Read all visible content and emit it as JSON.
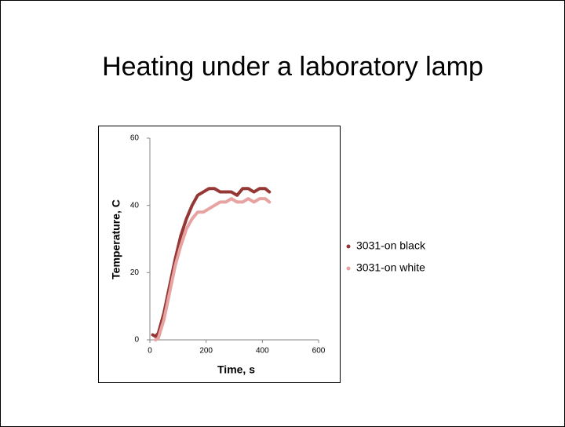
{
  "chart_data": {
    "type": "line",
    "title": "Heating under a laboratory lamp",
    "x_label": "Time,  s",
    "y_label": "Temperature, C",
    "x": [
      10,
      20,
      30,
      50,
      70,
      90,
      110,
      130,
      150,
      170,
      190,
      210,
      230,
      250,
      270,
      290,
      310,
      330,
      350,
      370,
      390,
      410,
      425
    ],
    "series": [
      {
        "name": "3031-on black",
        "color": "#953735",
        "values": [
          1.5,
          1,
          2,
          8,
          16,
          24,
          31,
          36,
          40,
          43,
          44,
          45,
          45,
          44,
          44,
          44,
          43,
          45,
          45,
          44,
          45,
          45,
          44
        ]
      },
      {
        "name": "3031-on white",
        "color": "#e6a3a1",
        "values": [
          null,
          0,
          0.5,
          6,
          14,
          22,
          28,
          33,
          36,
          38,
          38,
          39,
          40,
          41,
          41,
          42,
          41,
          41,
          42,
          41,
          42,
          42,
          41
        ]
      }
    ],
    "xlim": [
      0,
      600
    ],
    "xticks": [
      0,
      200,
      400,
      600
    ],
    "ylim": [
      0,
      60
    ],
    "yticks": [
      0,
      20,
      40,
      60
    ],
    "legend": "right"
  }
}
